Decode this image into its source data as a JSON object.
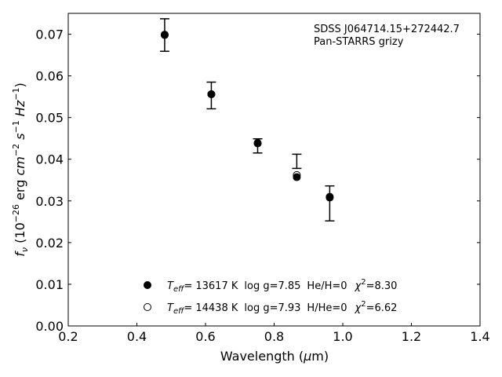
{
  "chart_data": {
    "type": "scatter",
    "xlabel_pre": "Wavelength (",
    "xlabel_sym": "μ",
    "xlabel_post": "m)",
    "ylabel_parts": {
      "f": "f",
      "nu": "ν",
      "open": " (10",
      "exp1": "−26",
      "erg": " erg ",
      "cm": "cm",
      "exp2": "−2",
      "s": " s",
      "exp3": "−1",
      "hz": " Hz",
      "exp4": "−1",
      "close": ")"
    },
    "xlim": [
      0.2,
      1.4
    ],
    "ylim": [
      0.0,
      0.075
    ],
    "xticks": [
      0.2,
      0.4,
      0.6,
      0.8,
      1.0,
      1.2,
      1.4
    ],
    "xtick_labels": [
      "0.2",
      "0.4",
      "0.6",
      "0.8",
      "1.0",
      "1.2",
      "1.4"
    ],
    "yticks": [
      0.0,
      0.01,
      0.02,
      0.03,
      0.04,
      0.05,
      0.06,
      0.07
    ],
    "ytick_labels": [
      "0.00",
      "0.01",
      "0.02",
      "0.03",
      "0.04",
      "0.05",
      "0.06",
      "0.07"
    ],
    "annotation": [
      "SDSS J064714.15+272442.7",
      "Pan-STARRS grizy"
    ],
    "grid": false,
    "observed": {
      "x": [
        0.481,
        0.617,
        0.752,
        0.866,
        0.962
      ],
      "y": [
        0.0698,
        0.0553,
        0.0432,
        0.0395,
        0.0294
      ],
      "yerr": [
        0.0039,
        0.0032,
        0.0017,
        0.0017,
        0.0042
      ]
    },
    "series": [
      {
        "name": "He/H=0",
        "marker": "filled",
        "teff": "13617 K",
        "logg": "log g=7.85",
        "comp": "He/H=0",
        "chi2": "=8.30",
        "x": [
          0.481,
          0.617,
          0.752,
          0.866,
          0.962
        ],
        "y": [
          0.0698,
          0.0556,
          0.0438,
          0.0357,
          0.0308
        ]
      },
      {
        "name": "H/He=0",
        "marker": "open",
        "teff": "14438 K",
        "logg": "log g=7.93",
        "comp": "H/He=0",
        "chi2": "=6.62",
        "x": [
          0.481,
          0.617,
          0.752,
          0.866,
          0.962
        ],
        "y": [
          0.0699,
          0.0556,
          0.0439,
          0.0362,
          0.031
        ]
      }
    ],
    "legend": {
      "placement": "lower-center",
      "teff_label": "T",
      "teff_sub": "eff",
      "eq": "= ",
      "chi_label": "χ",
      "chi_exp": "2"
    }
  }
}
